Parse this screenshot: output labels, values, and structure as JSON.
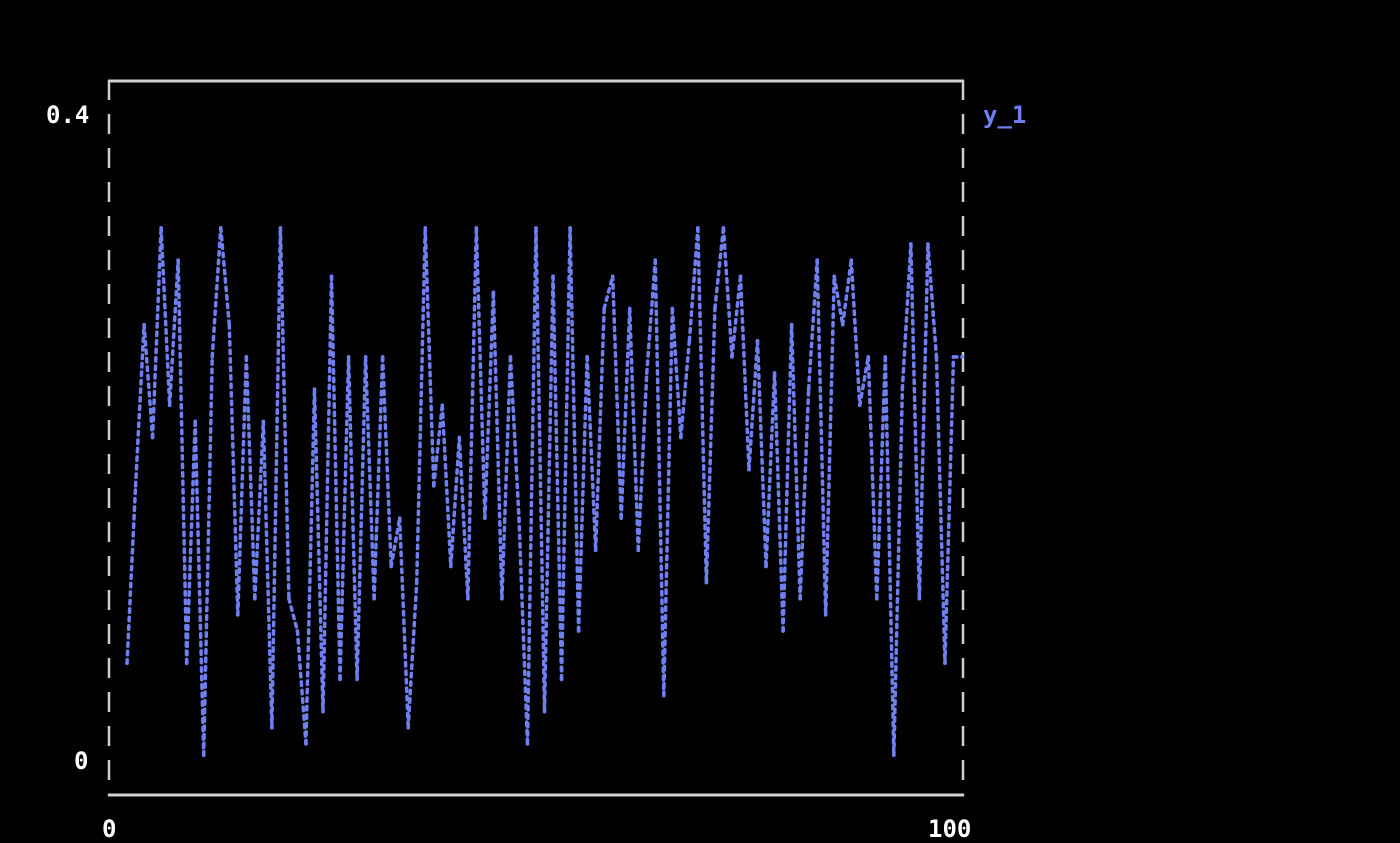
{
  "chart_data": {
    "type": "line",
    "title": "",
    "xlabel": "",
    "ylabel": "",
    "xlim": [
      0,
      100
    ],
    "ylim": [
      0,
      0.4
    ],
    "x_tick_labels": [
      "0",
      "100"
    ],
    "y_tick_labels": [
      "0.4",
      "0"
    ],
    "grid": false,
    "legend_placement": "right",
    "series": [
      {
        "name": "y_1",
        "color": "#6f7ff0",
        "x": [
          2,
          3,
          4,
          5,
          6,
          7,
          8,
          9,
          10,
          11,
          12,
          13,
          14,
          15,
          16,
          17,
          18,
          19,
          20,
          21,
          22,
          23,
          24,
          25,
          26,
          27,
          28,
          29,
          30,
          31,
          32,
          33,
          34,
          35,
          36,
          37,
          38,
          39,
          40,
          41,
          42,
          43,
          44,
          45,
          46,
          47,
          48,
          49,
          50,
          51,
          52,
          53,
          54,
          55,
          56,
          57,
          58,
          59,
          60,
          61,
          62,
          63,
          64,
          65,
          66,
          67,
          68,
          69,
          70,
          71,
          72,
          73,
          74,
          75,
          76,
          77,
          78,
          79,
          80,
          81,
          82,
          83,
          84,
          85,
          86,
          87,
          88,
          89,
          90,
          91,
          92,
          93,
          94,
          95,
          96,
          97,
          98,
          99,
          100
        ],
        "values": [
          0.06,
          0.17,
          0.27,
          0.2,
          0.33,
          0.22,
          0.31,
          0.06,
          0.21,
          0.003,
          0.25,
          0.33,
          0.27,
          0.09,
          0.25,
          0.1,
          0.21,
          0.02,
          0.33,
          0.1,
          0.08,
          0.01,
          0.23,
          0.03,
          0.3,
          0.05,
          0.25,
          0.05,
          0.25,
          0.1,
          0.25,
          0.12,
          0.15,
          0.02,
          0.11,
          0.33,
          0.17,
          0.22,
          0.12,
          0.2,
          0.1,
          0.33,
          0.15,
          0.29,
          0.1,
          0.25,
          0.15,
          0.01,
          0.33,
          0.03,
          0.3,
          0.05,
          0.33,
          0.08,
          0.25,
          0.13,
          0.28,
          0.3,
          0.15,
          0.28,
          0.13,
          0.24,
          0.31,
          0.04,
          0.28,
          0.2,
          0.26,
          0.33,
          0.11,
          0.28,
          0.33,
          0.25,
          0.3,
          0.18,
          0.26,
          0.12,
          0.24,
          0.08,
          0.27,
          0.1,
          0.23,
          0.31,
          0.09,
          0.3,
          0.27,
          0.31,
          0.22,
          0.25,
          0.1,
          0.25,
          0.003,
          0.23,
          0.32,
          0.1,
          0.32,
          0.25,
          0.06,
          0.25,
          0.25
        ]
      }
    ]
  },
  "colors": {
    "frame": "#d0d0d0",
    "series": "#6f7ff0",
    "background": "#000000"
  }
}
